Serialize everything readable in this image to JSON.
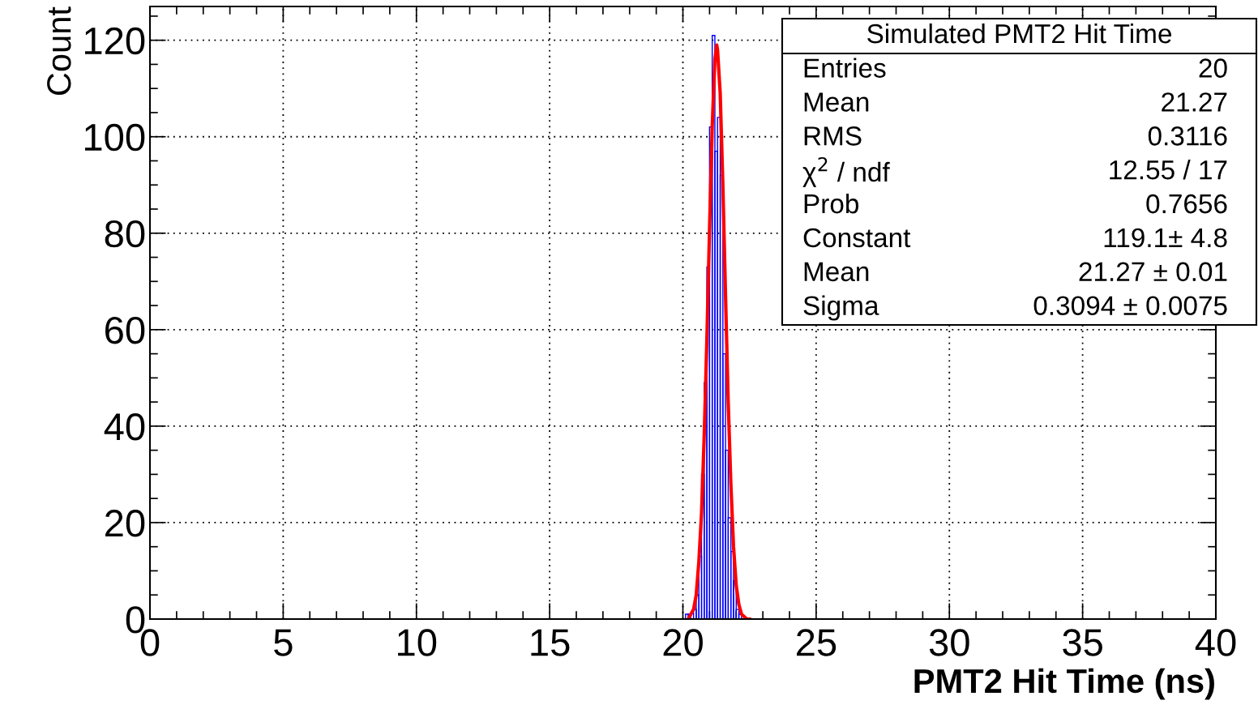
{
  "chart_data": {
    "type": "histogram",
    "title": "Simulated PMT2 Hit Time",
    "xlabel": "PMT2 Hit Time (ns)",
    "ylabel": "Count",
    "bins": [
      20.1,
      20.2,
      20.3,
      20.4,
      20.5,
      20.6,
      20.7,
      20.8,
      20.9,
      21.0,
      21.1,
      21.2,
      21.3,
      21.4,
      21.5,
      21.6,
      21.7,
      21.8,
      21.9,
      22.0,
      22.1,
      22.2,
      22.3
    ],
    "values": [
      1,
      1,
      0,
      2,
      5,
      13,
      30,
      49,
      73,
      102,
      121,
      97,
      104,
      92,
      55,
      35,
      21,
      14,
      8,
      2,
      1,
      0
    ],
    "color": "#0000ff",
    "series": [
      {
        "type": "line",
        "color": "#ff0000",
        "x": [
          20.2,
          20.3,
          20.4,
          20.5,
          20.6,
          20.7,
          20.8,
          20.9,
          21.0,
          21.1,
          21.2,
          21.27,
          21.3,
          21.4,
          21.5,
          21.6,
          21.7,
          21.8,
          21.9,
          22.0,
          22.1,
          22.2,
          22.3,
          22.4,
          22.5
        ],
        "values": [
          0,
          1,
          2,
          5,
          12,
          22,
          38,
          58,
          81,
          102,
          116,
          119,
          118,
          109,
          90,
          67,
          45,
          28,
          15,
          7,
          3,
          1,
          0.5,
          0,
          0
        ]
      }
    ],
    "xlim": [
      0,
      40
    ],
    "xticks": [
      0,
      5,
      10,
      15,
      20,
      25,
      30,
      35,
      40
    ],
    "ylim": [
      0,
      127
    ],
    "yticks": [
      0,
      20,
      40,
      60,
      80,
      100,
      120
    ],
    "grid": true,
    "legend": false,
    "annotations": [
      "Entries",
      "20",
      "Mean",
      "21.27",
      "RMS",
      "0.3116",
      "χ$^{2}$ / ndf",
      "12.55 / 17",
      "Prob",
      "0.7656",
      "Constant",
      "119.1± 4.8",
      "Mean",
      "21.27 ± 0.01",
      "Sigma",
      "0.3094 ± 0.0075"
    ]
  }
}
